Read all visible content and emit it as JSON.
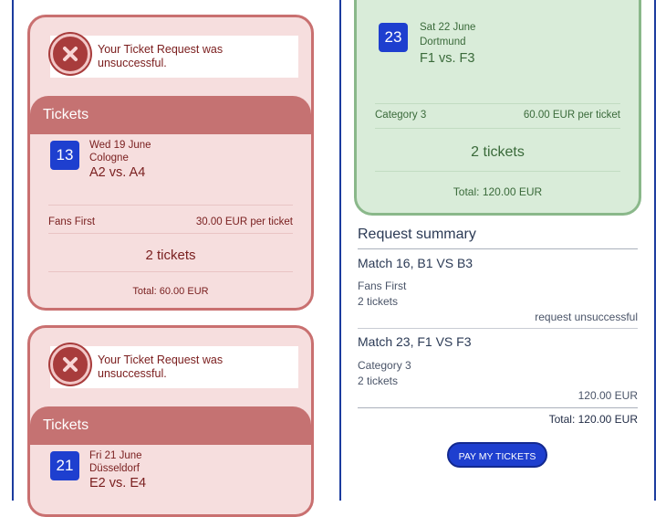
{
  "colors": {
    "accent_blue": "#1e3fcf",
    "error_red": "#a83c3c",
    "success_green": "#8ab88a"
  },
  "cards": [
    {
      "error": "Your Ticket Request was unsuccessful.",
      "tickets_header": "Tickets",
      "match_no": "13",
      "date": "Wed 19 June",
      "city": "Cologne",
      "teams": "A2 vs. A4",
      "category": "Fans First",
      "price": "30.00 EUR per ticket",
      "count": "2 tickets",
      "total": "Total: 60.00 EUR"
    },
    {
      "error": "Your Ticket Request was unsuccessful.",
      "tickets_header": "Tickets",
      "match_no": "21",
      "date": "Fri 21 June",
      "city": "Düsseldorf",
      "teams": "E2 vs. E4"
    }
  ],
  "green_card": {
    "match_no": "23",
    "date": "Sat 22 June",
    "city": "Dortmund",
    "teams": "F1 vs. F3",
    "category": "Category 3",
    "price": "60.00 EUR per ticket",
    "count": "2 tickets",
    "total": "Total: 120.00 EUR"
  },
  "summary": {
    "title": "Request summary",
    "items": [
      {
        "match": "Match 16, B1 VS B3",
        "category": "Fans First",
        "tickets": "2 tickets",
        "status": "request unsuccessful"
      },
      {
        "match": "Match 23, F1 VS F3",
        "category": "Category 3",
        "tickets": "2 tickets",
        "amount": "120.00 EUR"
      }
    ],
    "total": "Total: 120.00 EUR",
    "pay_button": "PAY MY TICKETS"
  }
}
